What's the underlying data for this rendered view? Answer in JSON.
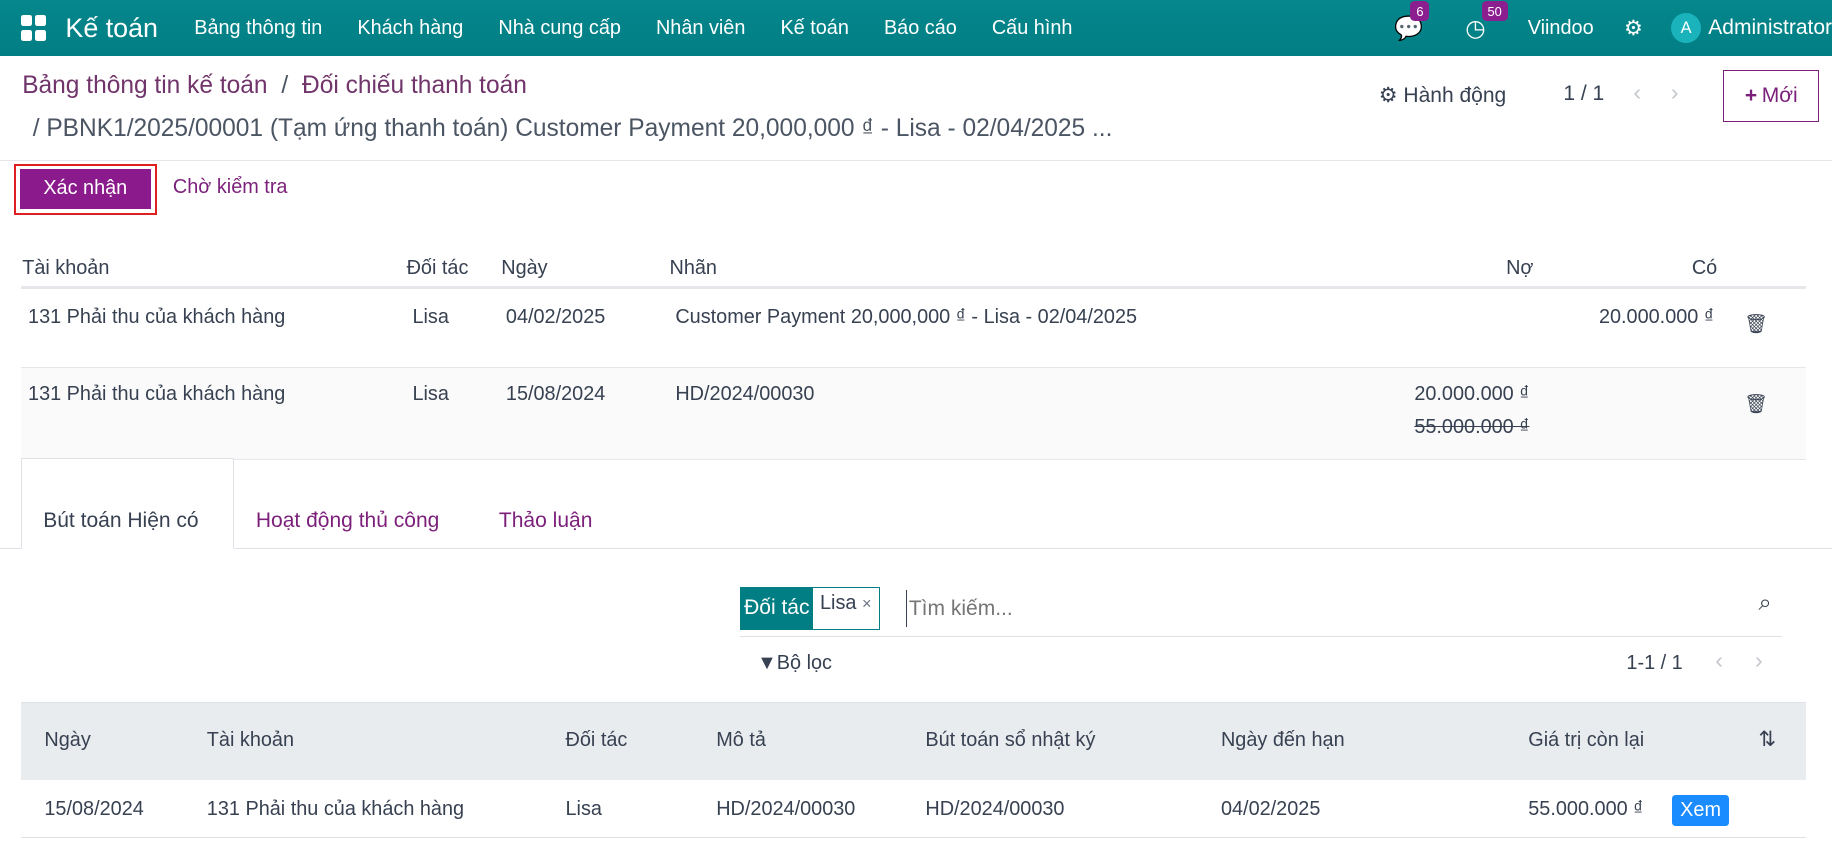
{
  "nav": {
    "app": "Kế toán",
    "menus": [
      "Bảng thông tin",
      "Khách hàng",
      "Nhà cung cấp",
      "Nhân viên",
      "Kế toán",
      "Báo cáo",
      "Cấu hình"
    ],
    "messages_count": "6",
    "activities_count": "50",
    "company": "Viindoo",
    "user_initial": "A",
    "user": "Administrator"
  },
  "breadcrumb": {
    "parent": "Bảng thông tin kế toán",
    "separator": "/",
    "current": "Đối chiếu thanh toán",
    "record": "/ PBNK1/2025/00001 (Tạm ứng thanh toán) Customer Payment 20,000,000 ₫ - Lisa - 02/04/2025 ..."
  },
  "toolbar": {
    "actions": "Hành động",
    "pager": "1 / 1",
    "new": "Mới",
    "confirm": "Xác nhận",
    "wait": "Chờ kiểm tra"
  },
  "lines": {
    "headers": [
      "Tài khoản",
      "Đối tác",
      "Ngày",
      "Nhãn",
      "Nợ",
      "Có"
    ],
    "rows": [
      {
        "account": "131 Phải thu của khách hàng",
        "partner": "Lisa",
        "date": "04/02/2025",
        "label": "Customer Payment 20,000,000 ₫ - Lisa - 02/04/2025",
        "debit": "",
        "debit_old": "",
        "credit": "20.000.000 ₫"
      },
      {
        "account": "131 Phải thu của khách hàng",
        "partner": "Lisa",
        "date": "15/08/2024",
        "label": "HD/2024/00030",
        "debit": "20.000.000 ₫",
        "debit_old": "55.000.000 ₫",
        "credit": ""
      }
    ]
  },
  "tabs": [
    "Bút toán Hiện có",
    "Hoạt động thủ công",
    "Thảo luận"
  ],
  "search": {
    "facet_key": "Đối tác",
    "facet_value": "Lisa",
    "placeholder": "Tìm kiếm...",
    "filter": "Bộ lọc",
    "pager": "1-1 / 1"
  },
  "entries": {
    "headers": [
      "Ngày",
      "Tài khoản",
      "Đối tác",
      "Mô tả",
      "Bút toán sổ nhật ký",
      "Ngày đến hạn",
      "Giá trị còn lại"
    ],
    "rows": [
      {
        "date": "15/08/2024",
        "account": "131 Phải thu của khách hàng",
        "partner": "Lisa",
        "desc": "HD/2024/00030",
        "journal": "HD/2024/00030",
        "due": "04/02/2025",
        "residual": "55.000.000 ₫",
        "view": "Xem"
      }
    ]
  },
  "colors": {
    "navbar": "#017e84",
    "primary": "#8b1b8c",
    "link": "#7c1f7a",
    "view_button": "#1a8cff"
  }
}
